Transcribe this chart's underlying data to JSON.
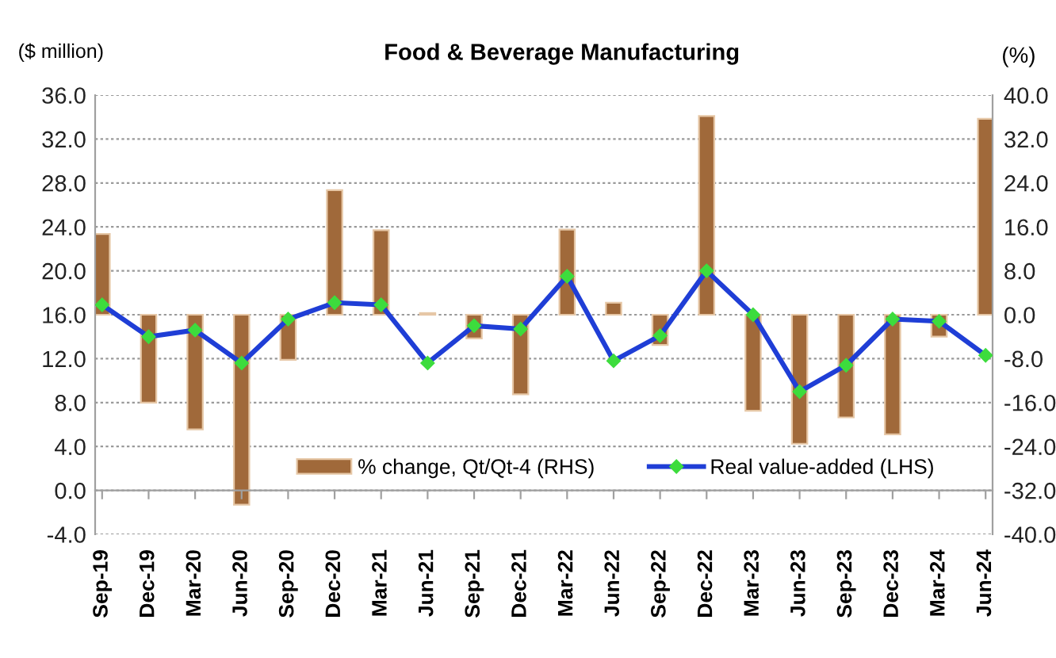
{
  "chart_data": {
    "type": "bar",
    "title": "Food & Beverage Manufacturing",
    "ylabel": "($ million)",
    "y2label": "(%)",
    "categories": [
      "Sep-19",
      "Dec-19",
      "Mar-20",
      "Jun-20",
      "Sep-20",
      "Dec-20",
      "Mar-21",
      "Jun-21",
      "Sep-21",
      "Dec-21",
      "Mar-22",
      "Jun-22",
      "Sep-22",
      "Dec-22",
      "Mar-23",
      "Jun-23",
      "Sep-23",
      "Dec-23",
      "Mar-24",
      "Jun-24"
    ],
    "series": [
      {
        "name": "% change, Qt/Qt-4 (RHS)",
        "axis": "y2",
        "color": "#a0693a",
        "values": [
          14.7,
          -16.0,
          -20.9,
          -34.6,
          -8.2,
          22.7,
          15.4,
          0.3,
          -4.3,
          -14.5,
          15.5,
          2.2,
          -5.5,
          36.2,
          -17.5,
          -23.5,
          -18.7,
          -21.8,
          -4.0,
          35.7
        ]
      },
      {
        "name": "Real value-added (LHS)",
        "type": "line",
        "color": "#1f3ed6",
        "values": [
          16.9,
          14.0,
          14.6,
          11.6,
          15.6,
          17.1,
          16.9,
          11.6,
          15.0,
          14.7,
          19.5,
          11.8,
          14.1,
          20.0,
          16.0,
          9.0,
          11.4,
          15.6,
          15.4,
          12.3
        ]
      }
    ],
    "ylim": [
      -4,
      36
    ],
    "yticks": [
      {
        "value": -4,
        "label": "-4.0"
      },
      {
        "value": 0,
        "label": "0.0"
      },
      {
        "value": 4,
        "label": "4.0"
      },
      {
        "value": 8,
        "label": "8.0"
      },
      {
        "value": 12,
        "label": "12.0"
      },
      {
        "value": 16,
        "label": "16.0"
      },
      {
        "value": 20,
        "label": "20.0"
      },
      {
        "value": 24,
        "label": "24.0"
      },
      {
        "value": 28,
        "label": "28.0"
      },
      {
        "value": 32,
        "label": "32.0"
      },
      {
        "value": 36,
        "label": "36.0"
      }
    ],
    "y2lim": [
      -40,
      40
    ],
    "y2ticks": [
      {
        "value": -40,
        "label": "-40.0"
      },
      {
        "value": -32,
        "label": "-32.0"
      },
      {
        "value": -24,
        "label": "-24.0"
      },
      {
        "value": -16,
        "label": "-16.0"
      },
      {
        "value": -8,
        "label": "-8.0"
      },
      {
        "value": 0,
        "label": "0.0"
      },
      {
        "value": 8,
        "label": "8.0"
      },
      {
        "value": 16,
        "label": "16.0"
      },
      {
        "value": 24,
        "label": "24.0"
      },
      {
        "value": 32,
        "label": "32.0"
      },
      {
        "value": 40,
        "label": "40.0"
      }
    ],
    "grid": "y",
    "legend": "bottom",
    "marker": "diamond",
    "line_style": "solid"
  }
}
